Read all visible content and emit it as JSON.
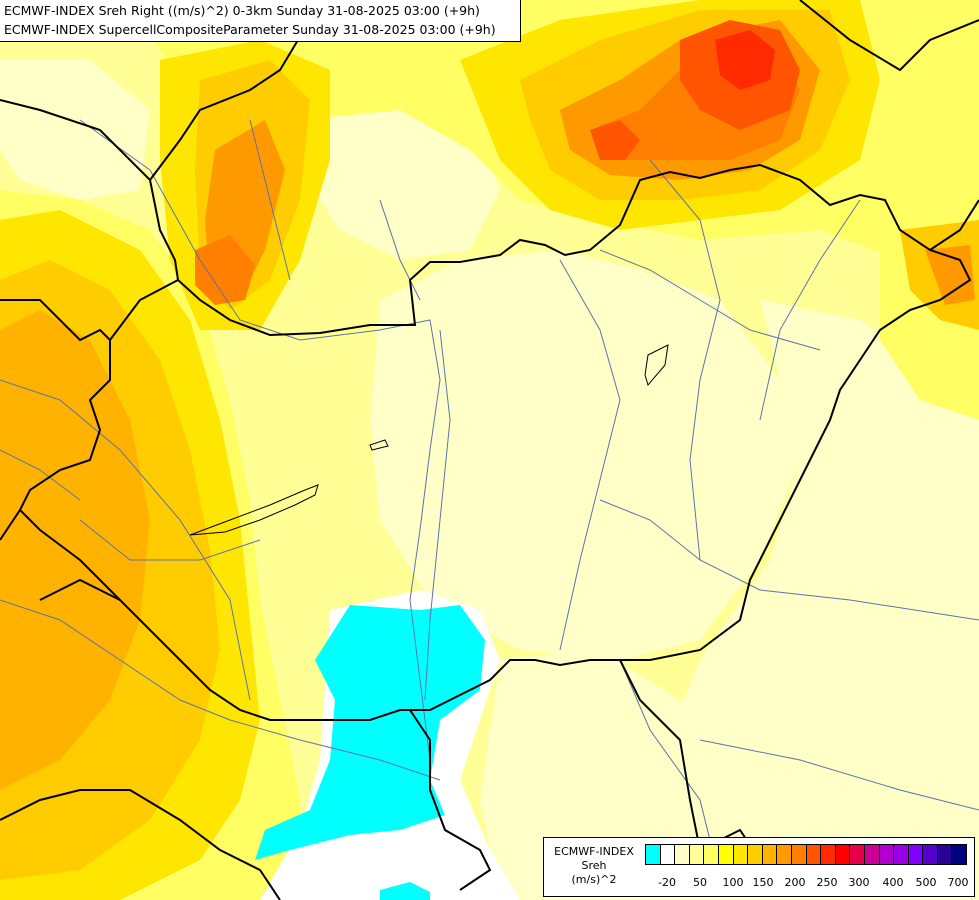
{
  "header": {
    "line1": "ECMWF-INDEX Sreh Right ((m/s)^2) 0-3km Sunday 31-08-2025 03:00 (+9h)",
    "line2": "ECMWF-INDEX SupercellCompositeParameter Sunday 31-08-2025 03:00 (+9h)"
  },
  "legend": {
    "title_line1": "ECMWF-INDEX",
    "title_line2": "Sreh",
    "title_line3": "(m/s)^2",
    "colors": [
      "#00ffff",
      "#ffffff",
      "#ffffc8",
      "#ffff96",
      "#ffff64",
      "#ffff00",
      "#ffe600",
      "#ffcc00",
      "#ffb300",
      "#ff9900",
      "#ff7f00",
      "#ff5500",
      "#ff2a00",
      "#ff0000",
      "#e6004c",
      "#cc0099",
      "#b300cc",
      "#9900e6",
      "#7f00ff",
      "#5500cc",
      "#2a0099",
      "#000080"
    ],
    "ticks": [
      "-20",
      "50",
      "100",
      "150",
      "200",
      "250",
      "300",
      "400",
      "500",
      "700"
    ]
  },
  "colors": {
    "pale": "#ffffc8",
    "light": "#ffff96",
    "medium": "#ffff64",
    "yellow": "#ffff00",
    "gold": "#ffe600",
    "amber": "#ffcc00",
    "orange1": "#ffb300",
    "orange2": "#ff9900",
    "orange3": "#ff7f00",
    "red1": "#ff5500",
    "red2": "#ff2a00",
    "cyan": "#00ffff",
    "border": "#000000",
    "river": "#5b74a8"
  }
}
